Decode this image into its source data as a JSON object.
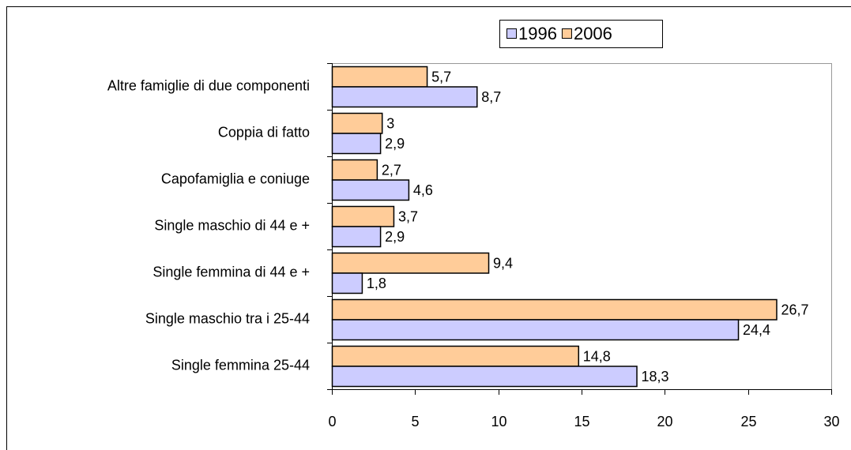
{
  "chart_data": {
    "type": "bar",
    "orientation": "horizontal",
    "categories": [
      "Altre famiglie di due componenti",
      "Coppia di fatto",
      "Capofamiglia e coniuge",
      "Single maschio di 44 e +",
      "Single femmina di 44 e +",
      "Single maschio tra i 25-44",
      "Single femmina 25-44"
    ],
    "series": [
      {
        "name": "1996",
        "color": "#ccccff",
        "values": [
          8.7,
          2.9,
          4.6,
          2.9,
          1.8,
          24.4,
          18.3
        ],
        "value_labels": [
          "8,7",
          "2,9",
          "4,6",
          "2,9",
          "1,8",
          "24,4",
          "18,3"
        ]
      },
      {
        "name": "2006",
        "color": "#ffcc99",
        "values": [
          5.7,
          3,
          2.7,
          3.7,
          9.4,
          26.7,
          14.8
        ],
        "value_labels": [
          "5,7",
          "3",
          "2,7",
          "3,7",
          "9,4",
          "26,7",
          "14,8"
        ]
      }
    ],
    "xlim": [
      0,
      30
    ],
    "xticks": [
      0,
      5,
      10,
      15,
      20,
      25,
      30
    ],
    "grid": false,
    "legend": "top"
  }
}
